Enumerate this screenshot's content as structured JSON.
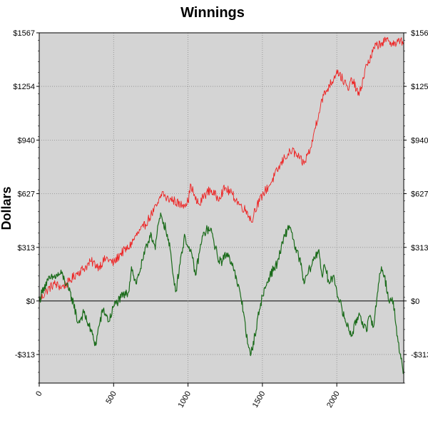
{
  "colors": {
    "plot_background": "#d4d4d4",
    "grid": "#8c8c8c",
    "zero_line": "#000000"
  },
  "chart_data": {
    "type": "line",
    "title": "Winnings",
    "ylabel": "Dollars",
    "xlabel": "",
    "xlim": [
      0,
      2450
    ],
    "ylim": [
      -480,
      1567
    ],
    "yticks": [
      -313,
      0,
      313,
      627,
      940,
      1254,
      1567
    ],
    "ytick_labels": [
      "-$313",
      "$0",
      "$313",
      "$627",
      "$940",
      "$1254",
      "$1567"
    ],
    "xticks": [
      0,
      500,
      1000,
      1500,
      2000
    ],
    "xtick_labels": [
      "0",
      "500",
      "1000",
      "1500",
      "2000"
    ],
    "grid": true,
    "series": [
      {
        "color": "#ee2222",
        "x": [
          0,
          50,
          100,
          150,
          200,
          250,
          300,
          350,
          400,
          450,
          500,
          550,
          600,
          650,
          700,
          750,
          800,
          830,
          850,
          900,
          950,
          1000,
          1020,
          1050,
          1080,
          1100,
          1150,
          1200,
          1250,
          1300,
          1350,
          1400,
          1430,
          1450,
          1480,
          1500,
          1550,
          1600,
          1650,
          1700,
          1750,
          1780,
          1800,
          1830,
          1850,
          1880,
          1900,
          1950,
          1980,
          2000,
          2050,
          2080,
          2100,
          2150,
          2200,
          2230,
          2250,
          2300,
          2350,
          2400,
          2430,
          2450
        ],
        "values": [
          0,
          60,
          100,
          80,
          110,
          160,
          190,
          230,
          200,
          250,
          220,
          280,
          310,
          380,
          430,
          500,
          570,
          640,
          600,
          590,
          560,
          580,
          680,
          590,
          560,
          610,
          650,
          600,
          660,
          620,
          560,
          520,
          460,
          540,
          580,
          620,
          680,
          760,
          840,
          880,
          830,
          800,
          850,
          900,
          1000,
          1100,
          1180,
          1260,
          1300,
          1350,
          1280,
          1230,
          1300,
          1200,
          1380,
          1420,
          1480,
          1510,
          1520,
          1500,
          1530,
          1500
        ]
      },
      {
        "color": "#1a6b1a",
        "x": [
          0,
          30,
          60,
          100,
          150,
          200,
          230,
          260,
          300,
          350,
          380,
          400,
          430,
          470,
          500,
          550,
          600,
          620,
          650,
          700,
          750,
          780,
          800,
          820,
          850,
          880,
          900,
          920,
          950,
          980,
          1000,
          1030,
          1050,
          1080,
          1100,
          1130,
          1160,
          1200,
          1230,
          1260,
          1300,
          1330,
          1350,
          1380,
          1400,
          1420,
          1450,
          1480,
          1500,
          1550,
          1600,
          1650,
          1680,
          1700,
          1720,
          1750,
          1780,
          1800,
          1850,
          1880,
          1900,
          1920,
          1950,
          1980,
          2000,
          2050,
          2100,
          2150,
          2200,
          2220,
          2250,
          2280,
          2300,
          2320,
          2350,
          2380,
          2400,
          2420,
          2450
        ],
        "values": [
          0,
          80,
          120,
          140,
          160,
          60,
          -10,
          -130,
          -70,
          -180,
          -260,
          -150,
          -50,
          -120,
          -30,
          20,
          50,
          200,
          100,
          250,
          400,
          300,
          450,
          500,
          420,
          300,
          150,
          60,
          250,
          380,
          320,
          250,
          150,
          300,
          380,
          420,
          400,
          250,
          230,
          280,
          220,
          100,
          50,
          -100,
          -250,
          -320,
          -200,
          -50,
          30,
          150,
          220,
          380,
          440,
          400,
          300,
          250,
          100,
          150,
          250,
          300,
          150,
          200,
          100,
          150,
          60,
          -100,
          -200,
          -70,
          -180,
          -90,
          -140,
          100,
          200,
          150,
          0,
          0,
          -150,
          -300,
          -420
        ]
      }
    ]
  }
}
